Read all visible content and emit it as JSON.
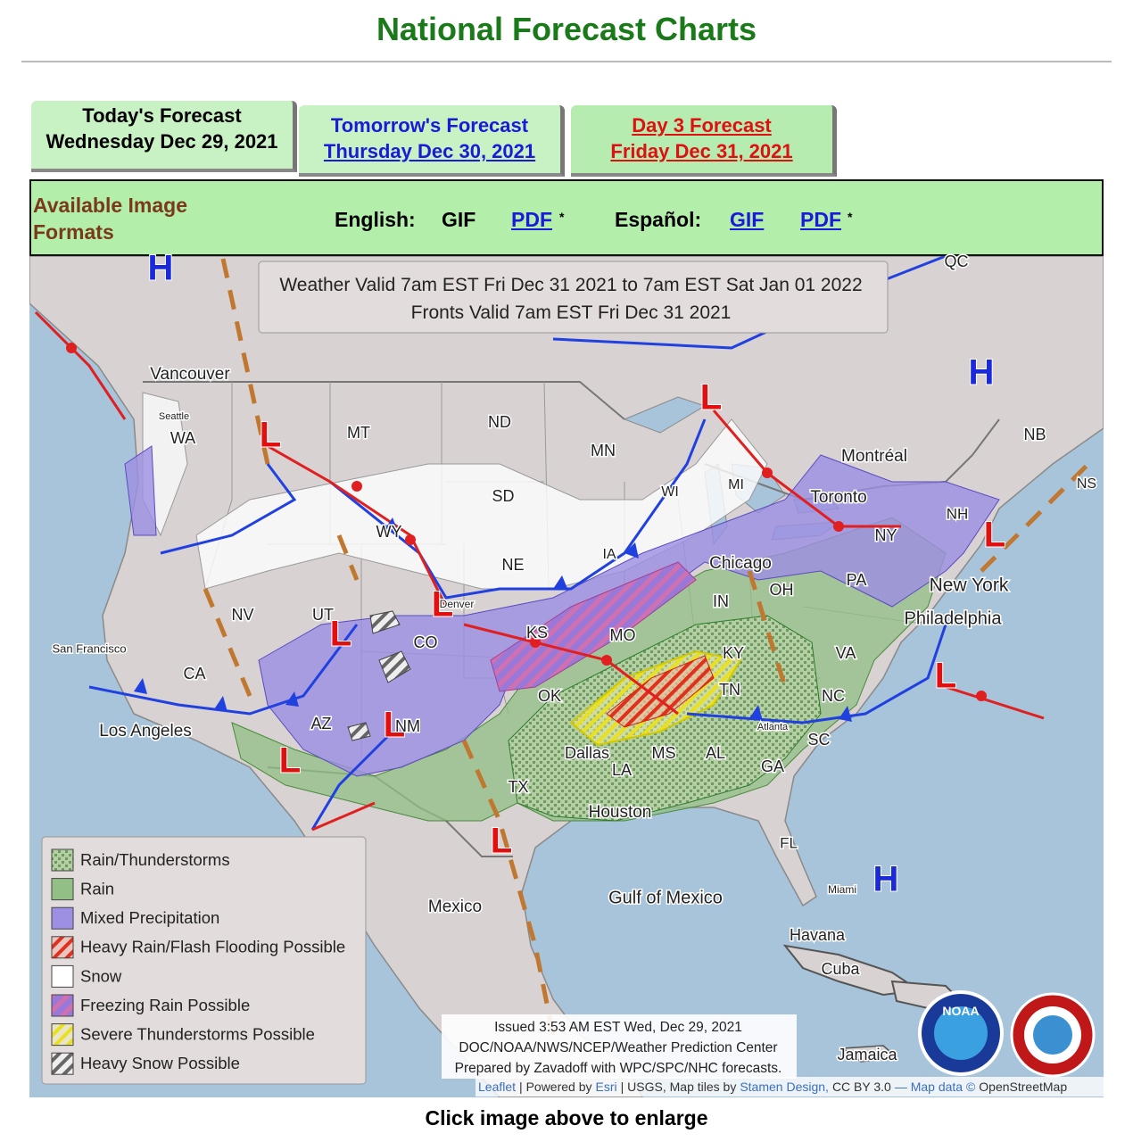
{
  "header": {
    "title": "National Forecast Charts"
  },
  "tabs": [
    {
      "title": "Today's Forecast",
      "date": "Wednesday Dec 29, 2021"
    },
    {
      "title": "Tomorrow's Forecast",
      "date": "Thursday Dec 30, 2021"
    },
    {
      "title": "Day 3 Forecast",
      "date": "Friday Dec 31, 2021"
    }
  ],
  "formats": {
    "label": "Available Image Formats",
    "english": {
      "label": "English:",
      "gif": "GIF",
      "pdf": "PDF",
      "note": "*"
    },
    "spanish": {
      "label": "Español:",
      "gif": "GIF",
      "pdf": "PDF",
      "note": "*"
    }
  },
  "map": {
    "valid": [
      "Weather Valid 7am EST Fri Dec 31 2021 to 7am EST Sat Jan 01 2022",
      "Fronts Valid 7am EST Fri Dec 31 2021"
    ],
    "legend": [
      "Rain/Thunderstorms",
      "Rain",
      "Mixed Precipitation",
      "Heavy Rain/Flash Flooding Possible",
      "Snow",
      "Freezing Rain Possible",
      "Severe Thunderstorms Possible",
      "Heavy Snow Possible"
    ],
    "issued": [
      "Issued 3:53 AM EST Wed, Dec 29, 2021",
      "DOC/NOAA/NWS/NCEP/Weather Prediction Center",
      "Prepared by Zavadoff with WPC/SPC/NHC forecasts."
    ],
    "attribution": [
      "Leaflet",
      "| Powered by",
      "Esri",
      "| USGS, Map tiles by",
      "Stamen Design,",
      "CC BY 3.0",
      "— Map data ©",
      "OpenStreetMap"
    ],
    "labels": [
      "Vancouver",
      "Seattle",
      "WA",
      "MT",
      "ND",
      "MN",
      "SD",
      "WY",
      "NE",
      "NV",
      "UT",
      "CO",
      "CA",
      "San Francisco",
      "Los Angeles",
      "AZ",
      "NM",
      "KS",
      "MO",
      "OK",
      "TX",
      "Dallas",
      "LA",
      "MS",
      "AL",
      "GA",
      "SC",
      "NC",
      "VA",
      "KY",
      "TN",
      "IN",
      "OH",
      "PA",
      "NY",
      "Chicago",
      "Toronto",
      "Montréal",
      "NB",
      "NS",
      "NH",
      "QC",
      "WI",
      "MI",
      "IA",
      "Denver",
      "Houston",
      "Atlanta",
      "FL",
      "Miami",
      "Gulf of Mexico",
      "Mexico",
      "Havana",
      "Cuba",
      "Jamaica",
      "New York",
      "Philadelphia"
    ],
    "pressure": [
      "H",
      "H",
      "H",
      "L",
      "L",
      "L",
      "L",
      "L",
      "L",
      "L",
      "L",
      "L"
    ],
    "logos": [
      "NOAA"
    ]
  },
  "footer": "Click image above to enlarge"
}
